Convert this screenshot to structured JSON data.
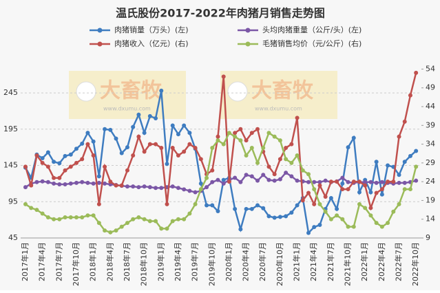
{
  "chart_data": {
    "type": "line",
    "title": "温氏股份2017-2022年肉猪月销售走势图",
    "watermark": [
      "大畜牧",
      "www.dxumu.com"
    ],
    "categories": [
      "2017年1月",
      null,
      null,
      "2017年4月",
      null,
      null,
      "2017年7月",
      null,
      null,
      "2017年10月",
      null,
      null,
      "2018年1月",
      null,
      null,
      "2018年4月",
      null,
      null,
      "2018年7月",
      null,
      null,
      "2018年10月",
      null,
      null,
      "2019年1月",
      null,
      null,
      "2019年4月",
      null,
      null,
      "2019年7月",
      null,
      null,
      "2019年10月",
      null,
      null,
      "2020年1月",
      null,
      null,
      "2020年4月",
      null,
      null,
      "2020年7月",
      null,
      null,
      "2020年10月",
      null,
      null,
      "2021年1月",
      null,
      null,
      "2021年4月",
      null,
      null,
      "2021年7月",
      null,
      null,
      "2021年10月",
      null,
      null,
      "2022年1月",
      null,
      null,
      "2022年4月",
      null,
      null,
      "2022年7月",
      null,
      null,
      "2022年10月"
    ],
    "ylim": [
      45,
      283
    ],
    "yticks": [
      45,
      95,
      145,
      195,
      245
    ],
    "y2lim": [
      9,
      55
    ],
    "y2ticks": [
      9,
      14,
      19,
      24,
      29,
      34,
      39,
      44,
      49,
      54
    ],
    "grid": true,
    "series": [
      {
        "name": "肉猪销量（万头）(左)",
        "color": "#3e7cc0",
        "values": [
          142,
          128,
          160,
          155,
          163,
          150,
          148,
          158,
          160,
          168,
          175,
          190,
          178,
          130,
          195,
          194,
          182,
          162,
          170,
          198,
          215,
          190,
          213,
          210,
          248,
          147,
          200,
          188,
          200,
          190,
          168,
          120,
          90,
          90,
          82,
          125,
          128,
          85,
          57,
          85,
          85,
          90,
          86,
          75,
          73,
          74,
          75,
          80,
          90,
          100,
          52,
          60,
          63,
          85,
          100,
          85,
          120,
          170,
          183,
          108,
          125,
          108,
          150,
          105,
          145,
          143,
          132,
          150,
          158,
          165
        ]
      },
      {
        "name": "头均肉猪重量（公斤/头）(左)",
        "color": "#7b57a6",
        "values": [
          115,
          120,
          122,
          123,
          122,
          120,
          119,
          119,
          120,
          121,
          122,
          121,
          120,
          121,
          120,
          119,
          118,
          117,
          116,
          116,
          115,
          116,
          115,
          114,
          114,
          115,
          116,
          114,
          112,
          110,
          108,
          110,
          115,
          122,
          125,
          120,
          125,
          128,
          122,
          132,
          130,
          124,
          132,
          125,
          124,
          126,
          135,
          130,
          124,
          123,
          122,
          122,
          122,
          124,
          122,
          123,
          128,
          122,
          121,
          122,
          122,
          122,
          121,
          122,
          121,
          120,
          121,
          121,
          122,
          124
        ]
      },
      {
        "name": "肉猪收入（亿元）(右)",
        "color": "#c0504d",
        "axis": "y2",
        "values": [
          28,
          23,
          31,
          29,
          28,
          25,
          25,
          27,
          28,
          29,
          30,
          34,
          31,
          18,
          28,
          24,
          23,
          23,
          27,
          31,
          36,
          32,
          34,
          34,
          33,
          18,
          33,
          31,
          32,
          34,
          33,
          30,
          26,
          27,
          36,
          52,
          24,
          37,
          38,
          35,
          37,
          38,
          32,
          28,
          26,
          30,
          33,
          34,
          41,
          19,
          21,
          18,
          23,
          20,
          24,
          24,
          22,
          22,
          24,
          24,
          23,
          17,
          21,
          22,
          24,
          24,
          36,
          40,
          47,
          53
        ]
      },
      {
        "name": "毛猪销售均价（元/公斤）(右)",
        "color": "#9bbb59",
        "axis": "y2",
        "values": [
          18,
          17,
          16.5,
          15.5,
          14.5,
          14,
          14,
          14.5,
          14.5,
          14.5,
          14.5,
          15,
          15,
          13,
          11,
          10.5,
          11,
          12,
          13,
          14,
          14.5,
          14,
          13.5,
          13.5,
          11.5,
          11.5,
          13.5,
          14,
          14,
          15.5,
          18,
          22,
          25,
          33,
          35,
          34,
          37,
          36,
          35,
          31,
          33,
          29,
          33,
          37,
          36,
          35,
          30,
          29,
          31,
          27,
          26,
          22,
          18,
          16,
          14,
          15,
          14,
          12,
          12,
          18,
          17,
          15,
          13,
          12,
          13,
          16,
          18,
          22,
          22,
          28
        ]
      }
    ]
  }
}
